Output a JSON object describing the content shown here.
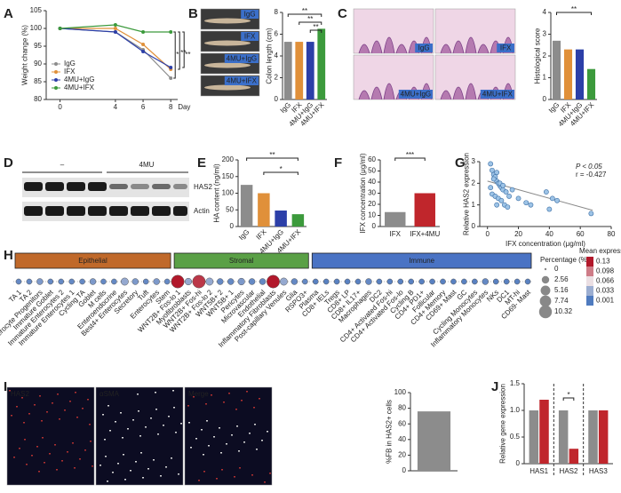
{
  "chart_data": [
    {
      "type": "line",
      "panel": "A",
      "ylabel": "Weight change (%)",
      "xlabel": "Day",
      "x": [
        0,
        4,
        6,
        8
      ],
      "xlim": [
        -1,
        8.5
      ],
      "xticks": [
        0,
        4,
        6,
        8
      ],
      "ylim": [
        80,
        105
      ],
      "yticks": [
        80,
        85,
        90,
        95,
        100,
        105
      ],
      "series": [
        {
          "name": "IgG",
          "color": "#8c8c8c",
          "values": [
            100,
            99,
            94,
            86
          ]
        },
        {
          "name": "IFX",
          "color": "#e0903a",
          "values": [
            100,
            100,
            95.5,
            88.5
          ]
        },
        {
          "name": "4MU+IgG",
          "color": "#2c3fa8",
          "values": [
            100,
            99,
            93.5,
            89
          ]
        },
        {
          "name": "4MU+IFX",
          "color": "#3c9a3c",
          "values": [
            100,
            101,
            99,
            99
          ]
        }
      ],
      "significance": [
        "*",
        "**",
        "**"
      ]
    },
    {
      "type": "bar",
      "panel": "B",
      "image_labels": [
        "IgG",
        "IFX",
        "4MU+IgG",
        "4MU+IFX"
      ],
      "ylabel": "Colon length (cm)",
      "categories": [
        "IgG",
        "IFX",
        "4MU+IgG",
        "4MU+IFX"
      ],
      "values": [
        5.3,
        5.3,
        5.3,
        6.5
      ],
      "colors": [
        "#8c8c8c",
        "#e0903a",
        "#2c3fa8",
        "#3c9a3c"
      ],
      "ylim": [
        0,
        8
      ],
      "yticks": [
        0,
        2,
        4,
        6,
        8
      ],
      "rotate_labels": true,
      "significance": [
        "**",
        "**",
        "**"
      ]
    },
    {
      "type": "bar",
      "panel": "C",
      "image_labels": [
        "IgG",
        "IFX",
        "4MU+IgG",
        "4MU+IFX"
      ],
      "ylabel": "Histological score",
      "categories": [
        "IgG",
        "IFX",
        "4MU+IgG",
        "4MU+IFX"
      ],
      "values": [
        2.7,
        2.3,
        2.3,
        1.4
      ],
      "colors": [
        "#8c8c8c",
        "#e0903a",
        "#2c3fa8",
        "#3c9a3c"
      ],
      "ylim": [
        0,
        4
      ],
      "yticks": [
        0,
        1,
        2,
        3,
        4
      ],
      "rotate_labels": true,
      "significance": [
        "**"
      ]
    },
    {
      "type": "bar",
      "panel": "E",
      "ylabel": "HA content (ng/ml)",
      "categories": [
        "IgG",
        "IFX",
        "4MU+IgG",
        "4MU+IFX"
      ],
      "values": [
        125,
        100,
        48,
        37
      ],
      "colors": [
        "#8c8c8c",
        "#e0903a",
        "#2c3fa8",
        "#3c9a3c"
      ],
      "ylim": [
        0,
        200
      ],
      "yticks": [
        0,
        50,
        100,
        150,
        200
      ],
      "rotate_labels": true,
      "significance": [
        "**",
        "*"
      ]
    },
    {
      "type": "bar",
      "panel": "F",
      "ylabel": "IFX concentration (μg/ml)",
      "categories": [
        "IFX",
        "IFX+4MU"
      ],
      "values": [
        13,
        30
      ],
      "colors": [
        "#8c8c8c",
        "#c0262c"
      ],
      "ylim": [
        0,
        60
      ],
      "yticks": [
        0,
        10,
        20,
        30,
        40,
        50,
        60
      ],
      "significance": [
        "***"
      ]
    },
    {
      "type": "scatter",
      "panel": "G",
      "ylabel": "Relative HAS2 expression",
      "xlabel": "IFX concentration (μg/ml)",
      "annotations": [
        "P < 0.05",
        "r = -0.427"
      ],
      "color": "#9dc3e6",
      "x": [
        2,
        3,
        4,
        5,
        6,
        7,
        8,
        9,
        10,
        12,
        3,
        5,
        7,
        9,
        11,
        14,
        4,
        6,
        8,
        10,
        13,
        16,
        20,
        25,
        28,
        38,
        40,
        42,
        45,
        67,
        2,
        6
      ],
      "y": [
        2.9,
        2.6,
        2.4,
        2.3,
        2.1,
        2.0,
        1.9,
        1.8,
        1.7,
        1.6,
        1.5,
        1.4,
        1.3,
        1.2,
        1.0,
        1.4,
        2.2,
        2.5,
        2.0,
        1.9,
        0.9,
        1.7,
        1.3,
        1.1,
        1.0,
        1.6,
        0.8,
        1.3,
        1.2,
        0.6,
        1.8,
        1.0
      ],
      "fit": {
        "x": [
          0,
          68
        ],
        "y": [
          2.1,
          0.75
        ]
      },
      "xlim": [
        -5,
        80
      ],
      "xticks": [
        0,
        20,
        40,
        60,
        80
      ],
      "ylim": [
        0,
        3
      ],
      "yticks": [
        0,
        1,
        2,
        3
      ]
    },
    {
      "type": "dot",
      "panel": "H",
      "groups": [
        {
          "name": "Epithelial",
          "color": "#c0692a",
          "categories": [
            "TA 1",
            "TA 2",
            "Enterocyte Progenitors",
            "Immature Goblet",
            "Immature Enterocytes 2",
            "Immature Enterocytes 1",
            "Cycling TA",
            "Goblet",
            "M cells",
            "Enteroendocrine",
            "Best4+ Enterocytes",
            "Secretory",
            "Tuft",
            "Enterocytes",
            "Stem"
          ],
          "percentage": [
            1,
            1,
            1.5,
            1,
            1,
            1,
            1,
            1.5,
            1,
            1,
            2.5,
            1.5,
            1,
            1.5,
            1
          ],
          "mean_expression": [
            0.01,
            0.01,
            0.02,
            0.01,
            0.01,
            0.01,
            0.01,
            0.02,
            0.01,
            0.01,
            0.03,
            0.02,
            0.01,
            0.02,
            0.01
          ]
        },
        {
          "name": "Stromal",
          "color": "#5aa046",
          "categories": [
            "WNT2B+ Fos-lo 1",
            "Myofibroblasts",
            "WNT2B+ Fos-hi",
            "WNT2B+ Fos-lo 2",
            "WNT5B+ 2",
            "WNT5B+ 1",
            "Pericytes",
            "Microvascular",
            "Endothelial",
            "Inflammatory Fibroblasts",
            "Post-capillary Venules",
            "Glia",
            "RSPO3+"
          ],
          "percentage": [
            10.3,
            2,
            10.3,
            2.5,
            1.5,
            1.5,
            2,
            1.5,
            1.5,
            10.3,
            2.5,
            1.5,
            1
          ],
          "mean_expression": [
            0.13,
            0.03,
            0.12,
            0.03,
            0.01,
            0.01,
            0.02,
            0.01,
            0.01,
            0.13,
            0.03,
            0.01,
            0.01
          ]
        },
        {
          "name": "Immune",
          "color": "#4a73c4",
          "categories": [
            "Plasma",
            "CD8+ IELs",
            "Tregs",
            "CD8+ LP",
            "CD8+ IL17+",
            "Macrophages",
            "DC2",
            "CD4+ Activated Fos-hi",
            "CD4+ Activated Fos-lo",
            "Cycling B",
            "CD4+ PD1+",
            "Follicular",
            "CD4+ Memory",
            "CD69+ Mast",
            "GC",
            "Cycling Monocytes",
            "Inflammatory Monocytes",
            "NKs",
            "DC1",
            "MT-hi",
            "CD69- Mast"
          ],
          "percentage": [
            1,
            1,
            1,
            1,
            1,
            1.5,
            1,
            1,
            1,
            1,
            1,
            1,
            1,
            1,
            1,
            1,
            1.5,
            1,
            1,
            1,
            1
          ],
          "mean_expression": [
            0.005,
            0.005,
            0.005,
            0.005,
            0.005,
            0.01,
            0.005,
            0.005,
            0.005,
            0.005,
            0.005,
            0.005,
            0.005,
            0.005,
            0.005,
            0.005,
            0.01,
            0.005,
            0.005,
            0.005,
            0.005
          ]
        }
      ],
      "size_legend": {
        "title": "Percentage (%)",
        "values": [
          0,
          2.56,
          5.16,
          7.74,
          10.32
        ]
      },
      "color_legend": {
        "title": "Mean expression",
        "values": [
          0.13,
          0.098,
          0.066,
          0.033,
          0.001
        ]
      }
    },
    {
      "type": "bar",
      "panel": "I",
      "image_labels": [
        "HAS2",
        "αSMA",
        "Merge"
      ],
      "ylabel": "%FB in HAS2+ cells",
      "categories": [
        null
      ],
      "values": [
        76
      ],
      "colors": [
        "#8c8c8c"
      ],
      "ylim": [
        0,
        100
      ],
      "yticks": [
        0,
        20,
        40,
        60,
        80,
        100
      ]
    },
    {
      "type": "bar",
      "panel": "J",
      "ylabel": "Relative gene expression",
      "categories": [
        "HAS1",
        "HAS2",
        "HAS3"
      ],
      "series": [
        {
          "color": "#8c8c8c",
          "values": [
            1.0,
            1.0,
            1.0
          ]
        },
        {
          "color": "#c0262c",
          "values": [
            1.2,
            0.28,
            1.0
          ]
        }
      ],
      "ylim": [
        0,
        1.5
      ],
      "yticks": [
        0,
        0.5,
        {
          "value": 1,
          "label": "1.0"
        },
        1.5
      ],
      "separators": true,
      "significance": [
        "*"
      ]
    }
  ],
  "blot": {
    "panel": "D",
    "groups": [
      "–",
      "4MU"
    ],
    "rows": [
      "HAS2",
      "Actin"
    ]
  }
}
